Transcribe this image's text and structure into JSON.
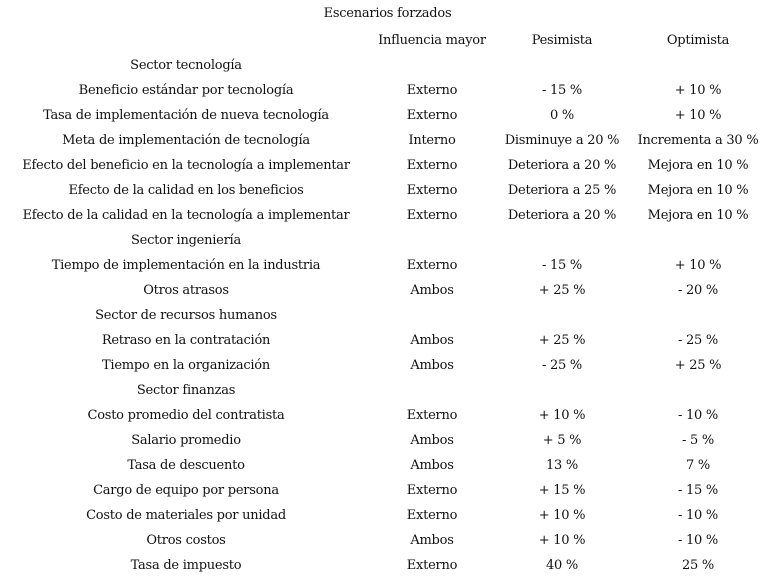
{
  "title": "Escenarios forzados",
  "headers": [
    "",
    "Influencia mayor",
    "Pesimista",
    "Optimista"
  ],
  "rows": [
    {
      "section": "Sector tecnología"
    },
    {
      "cells": [
        "Beneficio estándar por tecnología",
        "Externo",
        "- 15 %",
        "+ 10 %"
      ]
    },
    {
      "cells": [
        "Tasa de implementación de nueva tecnología",
        "Externo",
        "0 %",
        "+ 10 %"
      ]
    },
    {
      "cells": [
        "Meta de implementación de tecnología",
        "Interno",
        "Disminuye a 20 %",
        "Incrementa a 30 %"
      ]
    },
    {
      "cells": [
        "Efecto del beneficio en la tecnología a implementar",
        "Externo",
        "Deteriora a 20 %",
        "Mejora en 10 %"
      ]
    },
    {
      "cells": [
        "Efecto de la calidad en los beneficios",
        "Externo",
        "Deteriora a 25 %",
        "Mejora en 10 %"
      ]
    },
    {
      "cells": [
        "Efecto de la calidad en la tecnología a implementar",
        "Externo",
        "Deteriora a 20 %",
        "Mejora en 10 %"
      ]
    },
    {
      "section": "Sector ingeniería"
    },
    {
      "cells": [
        "Tiempo de implementación en la industria",
        "Externo",
        "- 15 %",
        "+ 10 %"
      ]
    },
    {
      "cells": [
        "Otros atrasos",
        "Ambos",
        "+ 25 %",
        "- 20 %"
      ]
    },
    {
      "section": "Sector de recursos humanos"
    },
    {
      "cells": [
        "Retraso en la contratación",
        "Ambos",
        "+ 25 %",
        "- 25 %"
      ]
    },
    {
      "cells": [
        "Tiempo en la organización",
        "Ambos",
        "- 25 %",
        "+ 25 %"
      ]
    },
    {
      "section": "Sector finanzas"
    },
    {
      "cells": [
        "Costo promedio del contratista",
        "Externo",
        "+ 10 %",
        "- 10 %"
      ]
    },
    {
      "cells": [
        "Salario promedio",
        "Ambos",
        "+ 5 %",
        "- 5 %"
      ]
    },
    {
      "cells": [
        "Tasa de descuento",
        "Ambos",
        "13 %",
        "7 %"
      ]
    },
    {
      "cells": [
        "Cargo de equipo por persona",
        "Externo",
        "+ 15 %",
        "- 15 %"
      ]
    },
    {
      "cells": [
        "Costo de materiales por unidad",
        "Externo",
        "+ 10 %",
        "- 10 %"
      ]
    },
    {
      "cells": [
        "Otros costos",
        "Ambos",
        "+ 10 %",
        "- 10 %"
      ]
    },
    {
      "cells": [
        "Tasa de impuesto",
        "Externo",
        "40 %",
        "25 %"
      ]
    }
  ]
}
